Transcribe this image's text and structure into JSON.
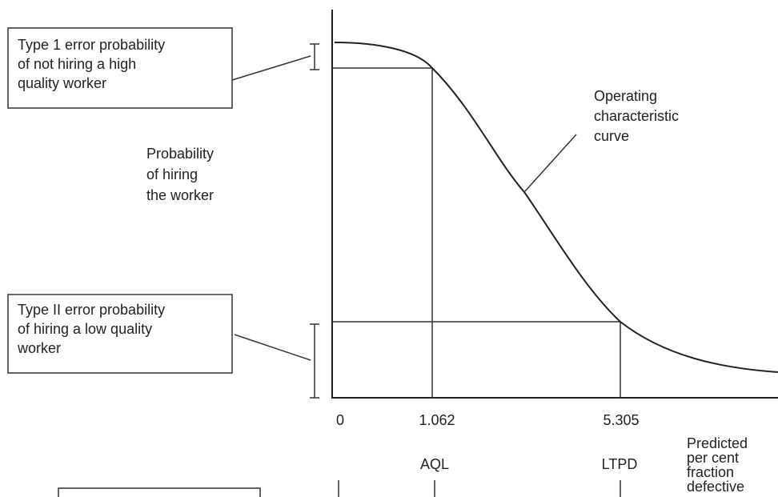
{
  "type1_box": {
    "lines": [
      "Type 1 error probability",
      "of not hiring a high",
      "quality worker"
    ]
  },
  "type2_box": {
    "lines": [
      "Type II error probability",
      "of hiring a low quality",
      "worker"
    ]
  },
  "y_axis_label": {
    "lines": [
      "Probability",
      "of hiring",
      "the worker"
    ]
  },
  "curve_label": {
    "lines": [
      "Operating",
      "characteristic",
      "curve"
    ]
  },
  "x_axis_label": {
    "lines": [
      "Predicted",
      "per cent",
      "fraction",
      "defective"
    ]
  },
  "x_points": [
    {
      "value": "0"
    },
    {
      "value": "1.062",
      "name": "AQL"
    },
    {
      "value": "5.305",
      "name": "LTPD"
    }
  ]
}
